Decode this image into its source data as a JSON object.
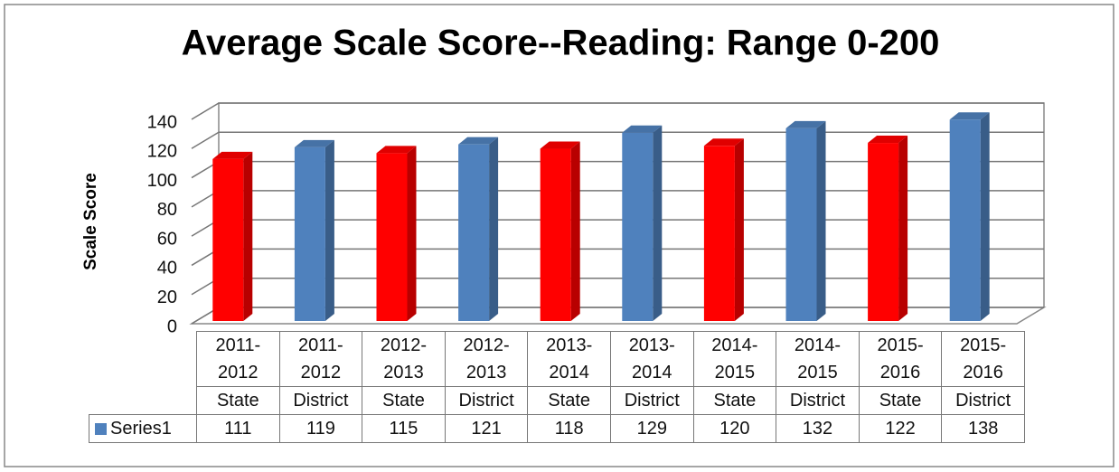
{
  "chart_data": {
    "type": "bar3d",
    "title": "Average Scale Score--Reading: Range 0-200",
    "y_label": "Scale Score",
    "categories": [
      "2011-2012",
      "2011-2012",
      "2012-2013",
      "2012-2013",
      "2013-2014",
      "2013-2014",
      "2014-2015",
      "2014-2015",
      "2015-2016",
      "2015-2016"
    ],
    "groups": [
      "State",
      "District",
      "State",
      "District",
      "State",
      "District",
      "State",
      "District",
      "State",
      "District"
    ],
    "series": [
      {
        "name": "Series1",
        "color": "#4f81bd",
        "values": [
          111,
          119,
          115,
          121,
          118,
          129,
          120,
          132,
          122,
          138
        ],
        "colors": [
          "#ff0000",
          "#4f81bd",
          "#ff0000",
          "#4f81bd",
          "#ff0000",
          "#4f81bd",
          "#ff0000",
          "#4f81bd",
          "#ff0000",
          "#4f81bd"
        ]
      }
    ],
    "ylim": [
      0,
      140
    ],
    "yticks": [
      0,
      20,
      40,
      60,
      80,
      100,
      120,
      140
    ],
    "grid": true,
    "data_table": true
  }
}
